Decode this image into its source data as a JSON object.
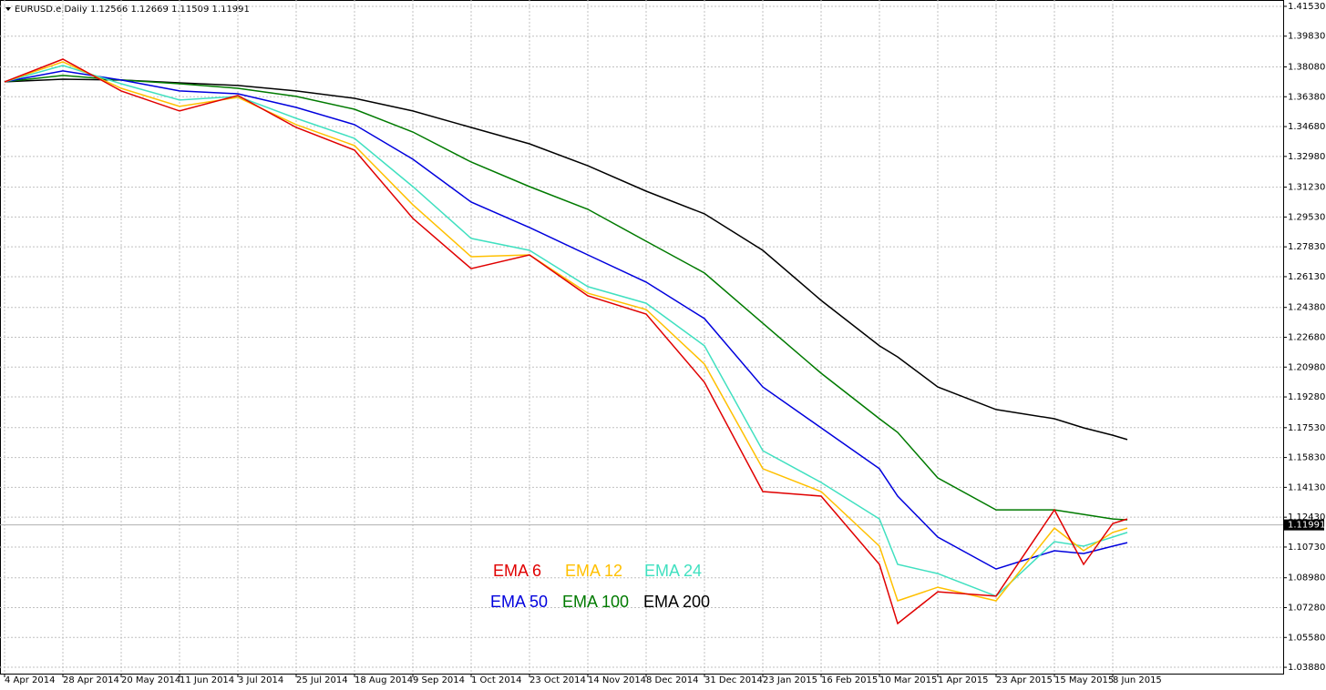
{
  "chart_data": {
    "type": "line",
    "title": "EURUSD.e,Daily  1.12566 1.12669 1.11509 1.11991",
    "x": [
      0,
      16,
      32,
      48,
      64,
      80,
      96,
      112,
      128,
      144,
      160,
      176,
      192,
      208,
      224,
      240,
      245,
      256,
      272,
      288,
      296,
      304,
      308
    ],
    "xlim": [
      -1.25,
      350.75
    ],
    "xticks": [
      {
        "value": 0,
        "label": "4 Apr 2014"
      },
      {
        "value": 16,
        "label": "28 Apr 2014"
      },
      {
        "value": 32,
        "label": "20 May 2014"
      },
      {
        "value": 48,
        "label": "11 Jun 2014"
      },
      {
        "value": 64,
        "label": "3 Jul 2014"
      },
      {
        "value": 80,
        "label": "25 Jul 2014"
      },
      {
        "value": 96,
        "label": "18 Aug 2014"
      },
      {
        "value": 112,
        "label": "9 Sep 2014"
      },
      {
        "value": 128,
        "label": "1 Oct 2014"
      },
      {
        "value": 144,
        "label": "23 Oct 2014"
      },
      {
        "value": 160,
        "label": "14 Nov 2014"
      },
      {
        "value": 176,
        "label": "8 Dec 2014"
      },
      {
        "value": 192,
        "label": "31 Dec 2014"
      },
      {
        "value": 208,
        "label": "23 Jan 2015"
      },
      {
        "value": 224,
        "label": "16 Feb 2015"
      },
      {
        "value": 240,
        "label": "10 Mar 2015"
      },
      {
        "value": 256,
        "label": "1 Apr 2015"
      },
      {
        "value": 272,
        "label": "23 Apr 2015"
      },
      {
        "value": 288,
        "label": "15 May 2015"
      },
      {
        "value": 304,
        "label": "8 Jun 2015"
      }
    ],
    "ylim": [
      1.0352,
      1.4189
    ],
    "yticks": [
      {
        "value": 1.4153,
        "label": "1.41530"
      },
      {
        "value": 1.3983,
        "label": "1.39830"
      },
      {
        "value": 1.3808,
        "label": "1.38080"
      },
      {
        "value": 1.3638,
        "label": "1.36380"
      },
      {
        "value": 1.3468,
        "label": "1.34680"
      },
      {
        "value": 1.3298,
        "label": "1.32980"
      },
      {
        "value": 1.3123,
        "label": "1.31230"
      },
      {
        "value": 1.2953,
        "label": "1.29530"
      },
      {
        "value": 1.2783,
        "label": "1.27830"
      },
      {
        "value": 1.2613,
        "label": "1.26130"
      },
      {
        "value": 1.2438,
        "label": "1.24380"
      },
      {
        "value": 1.2268,
        "label": "1.22680"
      },
      {
        "value": 1.2098,
        "label": "1.20980"
      },
      {
        "value": 1.1928,
        "label": "1.19280"
      },
      {
        "value": 1.1753,
        "label": "1.17530"
      },
      {
        "value": 1.1583,
        "label": "1.15830"
      },
      {
        "value": 1.1413,
        "label": "1.14130"
      },
      {
        "value": 1.1243,
        "label": "1.12430"
      },
      {
        "value": 1.1073,
        "label": "1.10730"
      },
      {
        "value": 1.0898,
        "label": "1.08980"
      },
      {
        "value": 1.0728,
        "label": "1.07280"
      },
      {
        "value": 1.0558,
        "label": "1.05580"
      },
      {
        "value": 1.0388,
        "label": "1.03880"
      }
    ],
    "grid": true,
    "price_line": {
      "value": 1.11991,
      "label": "1.11991"
    },
    "series": [
      {
        "name": "EMA 6",
        "color": "#e00000",
        "values": [
          1.3723,
          1.3852,
          1.3671,
          1.3557,
          1.3645,
          1.3463,
          1.3334,
          1.2945,
          1.2659,
          1.2737,
          1.2504,
          1.24,
          1.2011,
          1.1389,
          1.1363,
          1.0974,
          1.0637,
          1.0818,
          1.0793,
          1.1285,
          1.0974,
          1.1207,
          1.1233
        ]
      },
      {
        "name": "EMA 12",
        "color": "#ffc000",
        "values": [
          1.3723,
          1.3837,
          1.3686,
          1.3583,
          1.3634,
          1.3479,
          1.336,
          1.3023,
          1.2727,
          1.2737,
          1.2519,
          1.2426,
          1.2115,
          1.1519,
          1.1389,
          1.1078,
          1.0767,
          1.0844,
          1.0767,
          1.1181,
          1.1052,
          1.1156,
          1.1181
        ]
      },
      {
        "name": "EMA 24",
        "color": "#40e0c0",
        "values": [
          1.3723,
          1.3816,
          1.3712,
          1.3619,
          1.364,
          1.3515,
          1.3401,
          1.3126,
          1.2831,
          1.2763,
          1.2556,
          1.2462,
          1.2219,
          1.1622,
          1.1441,
          1.1233,
          1.0974,
          1.0922,
          1.0793,
          1.1104,
          1.1078,
          1.113,
          1.1156
        ]
      },
      {
        "name": "EMA 50",
        "color": "#0000dd",
        "values": [
          1.3723,
          1.3785,
          1.3733,
          1.3671,
          1.3655,
          1.3577,
          1.3479,
          1.3282,
          1.3038,
          1.2893,
          1.2737,
          1.2582,
          1.2374,
          1.1985,
          1.1752,
          1.1519,
          1.1363,
          1.113,
          1.0948,
          1.1052,
          1.1036,
          1.1078,
          1.1098
        ]
      },
      {
        "name": "EMA 100",
        "color": "#007a00",
        "values": [
          1.3723,
          1.3759,
          1.3733,
          1.3712,
          1.3686,
          1.364,
          1.3567,
          1.3437,
          1.3266,
          1.3126,
          1.2997,
          1.2815,
          1.2634,
          1.2348,
          1.2063,
          1.1804,
          1.1726,
          1.1467,
          1.1285,
          1.1285,
          1.1259,
          1.1233,
          1.1228
        ]
      },
      {
        "name": "EMA 200",
        "color": "#000000",
        "values": [
          1.3723,
          1.3738,
          1.3733,
          1.3717,
          1.3702,
          1.3671,
          1.3629,
          1.3557,
          1.3463,
          1.337,
          1.3245,
          1.31,
          1.2971,
          1.2763,
          1.2478,
          1.2219,
          1.2156,
          1.1985,
          1.1856,
          1.1804,
          1.1752,
          1.171,
          1.1685
        ]
      }
    ]
  }
}
